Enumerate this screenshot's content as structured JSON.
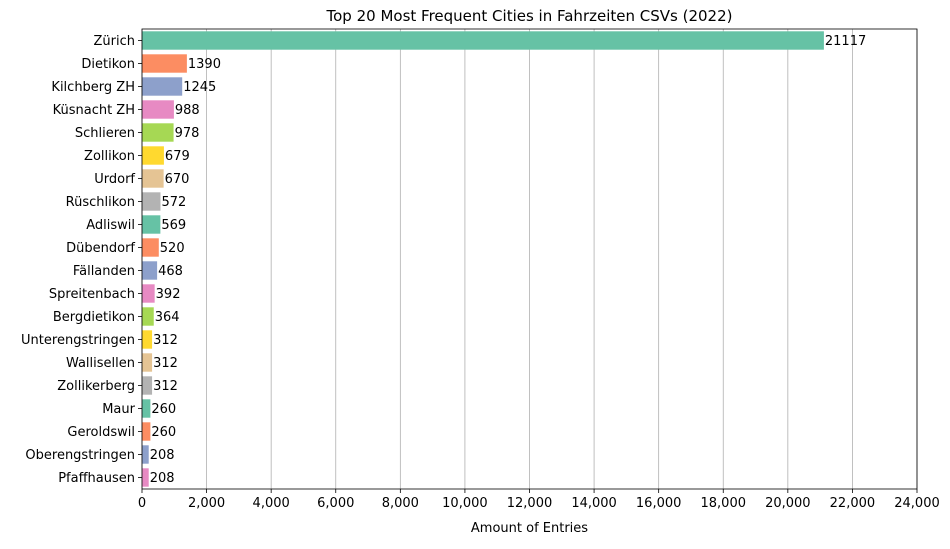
{
  "chart_data": {
    "type": "bar",
    "orientation": "horizontal",
    "title": "Top 20 Most Frequent Cities in Fahrzeiten CSVs (2022)",
    "xlabel": "Amount of Entries",
    "ylabel": "",
    "xlim": [
      0,
      24000
    ],
    "xticks": [
      0,
      2000,
      4000,
      6000,
      8000,
      10000,
      12000,
      14000,
      16000,
      18000,
      20000,
      22000,
      24000
    ],
    "xtick_labels": [
      "0",
      "2,000",
      "4,000",
      "6,000",
      "8,000",
      "10,000",
      "12,000",
      "14,000",
      "16,000",
      "18,000",
      "20,000",
      "22,000",
      "24,000"
    ],
    "grid": "vertical",
    "categories": [
      "Zürich",
      "Dietikon",
      "Kilchberg ZH",
      "Küsnacht ZH",
      "Schlieren",
      "Zollikon",
      "Urdorf",
      "Rüschlikon",
      "Adliswil",
      "Dübendorf",
      "Fällanden",
      "Spreitenbach",
      "Bergdietikon",
      "Unterengstringen",
      "Wallisellen",
      "Zollikerberg",
      "Maur",
      "Geroldswil",
      "Oberengstringen",
      "Pfaffhausen"
    ],
    "values": [
      21117,
      1390,
      1245,
      988,
      978,
      679,
      670,
      572,
      569,
      520,
      468,
      392,
      364,
      312,
      312,
      312,
      260,
      260,
      208,
      208
    ],
    "data_labels": [
      "21117",
      "1390",
      "1245",
      "988",
      "978",
      "679",
      "670",
      "572",
      "569",
      "520",
      "468",
      "392",
      "364",
      "312",
      "312",
      "312",
      "260",
      "260",
      "208",
      "208"
    ],
    "palette": [
      "#66c2a5",
      "#fc8d62",
      "#8da0cb",
      "#e78ac3",
      "#a6d854",
      "#ffd92f",
      "#e5c494",
      "#b3b3b3"
    ]
  }
}
